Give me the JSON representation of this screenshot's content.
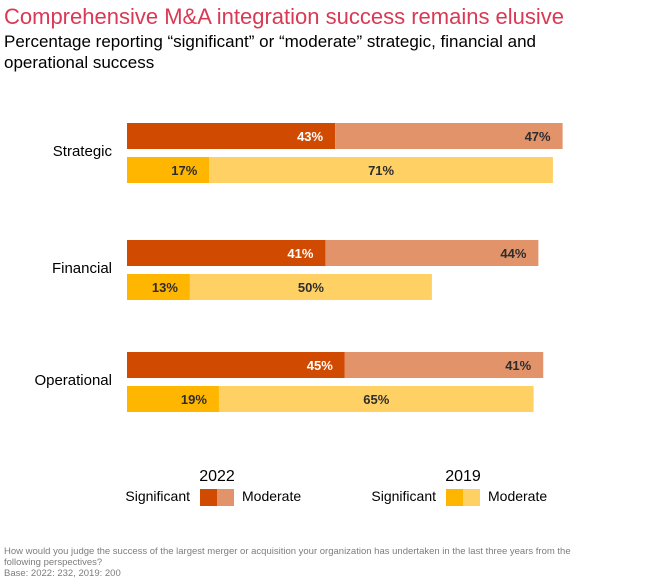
{
  "title": "Comprehensive M&A integration success remains elusive",
  "subtitle": "Percentage reporting “significant” or “moderate” strategic, financial and operational success",
  "footer": {
    "question": "How would you judge the success of the largest merger or acquisition your organization has undertaken in the last three years from the following perspectives?",
    "base": "Base: 2022: 232, 2019: 200"
  },
  "chart_data": {
    "type": "bar",
    "orientation": "horizontal",
    "stacked": true,
    "categories": [
      "Strategic",
      "Financial",
      "Operational"
    ],
    "groups": [
      {
        "name": "2022",
        "series": [
          {
            "name": "Significant",
            "values": [
              43,
              41,
              45
            ],
            "color": "#d04a02"
          },
          {
            "name": "Moderate",
            "values": [
              47,
              44,
              41
            ],
            "color": "#e3936a"
          }
        ]
      },
      {
        "name": "2019",
        "series": [
          {
            "name": "Significant",
            "values": [
              17,
              13,
              19
            ],
            "color": "#ffb600"
          },
          {
            "name": "Moderate",
            "values": [
              71,
              50,
              65
            ],
            "color": "#ffd165"
          }
        ]
      }
    ],
    "value_suffix": "%",
    "grid": false,
    "legend_placement": "bottom"
  }
}
